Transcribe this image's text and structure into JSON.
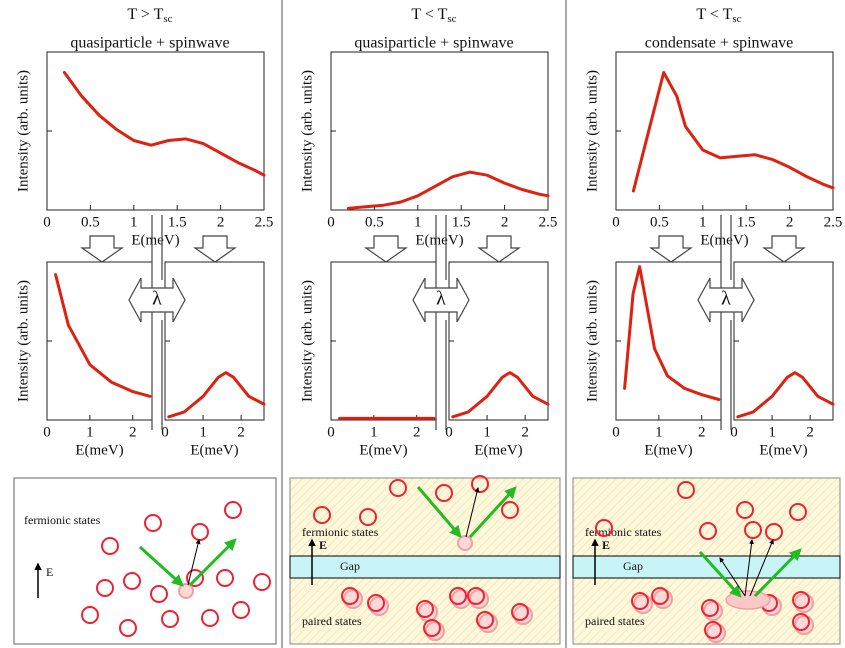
{
  "chart_data": [
    {
      "type": "line",
      "title": "T > T",
      "title_subscript": "sc",
      "subtitle": "quasiparticle + spinwave",
      "xlabel": "E(meV)",
      "ylabel": "Intensity (arb. units)",
      "x": [
        0.2,
        0.4,
        0.6,
        0.8,
        1.0,
        1.2,
        1.4,
        1.6,
        1.8,
        2.0,
        2.2,
        2.4,
        2.5
      ],
      "series": [
        {
          "color": "#dd2211",
          "values": [
            0.87,
            0.72,
            0.6,
            0.51,
            0.44,
            0.41,
            0.44,
            0.45,
            0.42,
            0.36,
            0.3,
            0.25,
            0.22
          ]
        }
      ],
      "xlim": [
        0,
        2.5
      ],
      "xticks": [
        0,
        0.5,
        1,
        1.5,
        2,
        2.5
      ],
      "ylim": [
        0,
        1
      ]
    },
    {
      "type": "line",
      "xlabel": "E(meV)",
      "ylabel": "Intensity (arb. units)",
      "x": [
        0.2,
        0.5,
        1.0,
        1.5,
        2.0,
        2.4
      ],
      "series": [
        {
          "color": "#dd2211",
          "values": [
            0.92,
            0.6,
            0.35,
            0.24,
            0.18,
            0.15
          ]
        }
      ],
      "xlim": [
        0,
        2.45
      ],
      "xticks": [
        0,
        1,
        2
      ],
      "ylim": [
        0,
        1
      ]
    },
    {
      "type": "line",
      "xlabel": "E(meV)",
      "x": [
        0.1,
        0.5,
        1.0,
        1.4,
        1.6,
        1.8,
        2.2,
        2.6
      ],
      "series": [
        {
          "color": "#dd2211",
          "values": [
            0.02,
            0.05,
            0.15,
            0.27,
            0.3,
            0.27,
            0.15,
            0.1
          ]
        }
      ],
      "xlim": [
        0,
        2.6
      ],
      "xticks": [
        0,
        1,
        2
      ],
      "ylim": [
        0,
        1
      ]
    },
    {
      "type": "line",
      "title": "T < T",
      "title_subscript": "sc",
      "subtitle": "quasiparticle + spinwave",
      "xlabel": "E(meV)",
      "ylabel": "Intensity (arb. units)",
      "x": [
        0.2,
        0.4,
        0.6,
        0.8,
        1.0,
        1.2,
        1.4,
        1.6,
        1.8,
        2.0,
        2.2,
        2.4,
        2.5
      ],
      "series": [
        {
          "color": "#dd2211",
          "values": [
            0.01,
            0.02,
            0.03,
            0.05,
            0.09,
            0.15,
            0.21,
            0.24,
            0.22,
            0.17,
            0.13,
            0.1,
            0.09
          ]
        }
      ],
      "xlim": [
        0,
        2.5
      ],
      "xticks": [
        0,
        0.5,
        1,
        1.5,
        2,
        2.5
      ],
      "ylim": [
        0,
        1
      ]
    },
    {
      "type": "line",
      "xlabel": "E(meV)",
      "ylabel": "Intensity (arb. units)",
      "x": [
        0.2,
        1.0,
        2.0,
        2.4
      ],
      "series": [
        {
          "color": "#dd2211",
          "values": [
            0.01,
            0.01,
            0.01,
            0.01
          ]
        }
      ],
      "xlim": [
        0,
        2.45
      ],
      "xticks": [
        0,
        1,
        2
      ],
      "ylim": [
        0,
        1
      ]
    },
    {
      "type": "line",
      "xlabel": "E(meV)",
      "x": [
        0.1,
        0.5,
        1.0,
        1.4,
        1.6,
        1.8,
        2.2,
        2.6
      ],
      "series": [
        {
          "color": "#dd2211",
          "values": [
            0.02,
            0.05,
            0.15,
            0.27,
            0.3,
            0.27,
            0.15,
            0.1
          ]
        }
      ],
      "xlim": [
        0,
        2.6
      ],
      "xticks": [
        0,
        1,
        2
      ],
      "ylim": [
        0,
        1
      ]
    },
    {
      "type": "line",
      "title": "T < T",
      "title_subscript": "sc",
      "subtitle": "condensate + spinwave",
      "xlabel": "E(meV)",
      "ylabel": "Intensity (arb. units)",
      "x": [
        0.2,
        0.4,
        0.55,
        0.7,
        0.8,
        1.0,
        1.2,
        1.4,
        1.6,
        1.8,
        2.0,
        2.2,
        2.4,
        2.5
      ],
      "series": [
        {
          "color": "#dd2211",
          "values": [
            0.12,
            0.55,
            0.87,
            0.72,
            0.53,
            0.38,
            0.33,
            0.34,
            0.35,
            0.32,
            0.27,
            0.21,
            0.16,
            0.14
          ]
        }
      ],
      "xlim": [
        0,
        2.5
      ],
      "xticks": [
        0,
        0.5,
        1,
        1.5,
        2,
        2.5
      ],
      "ylim": [
        0,
        1
      ]
    },
    {
      "type": "line",
      "xlabel": "E(meV)",
      "ylabel": "Intensity (arb. units)",
      "x": [
        0.2,
        0.4,
        0.55,
        0.7,
        0.9,
        1.2,
        1.6,
        2.0,
        2.4
      ],
      "series": [
        {
          "color": "#dd2211",
          "values": [
            0.2,
            0.8,
            0.97,
            0.75,
            0.45,
            0.28,
            0.2,
            0.16,
            0.13
          ]
        }
      ],
      "xlim": [
        0,
        2.45
      ],
      "xticks": [
        0,
        1,
        2
      ],
      "ylim": [
        0,
        1
      ]
    },
    {
      "type": "line",
      "xlabel": "E(meV)",
      "x": [
        0.1,
        0.5,
        1.0,
        1.4,
        1.6,
        1.8,
        2.2,
        2.6
      ],
      "series": [
        {
          "color": "#dd2211",
          "values": [
            0.02,
            0.05,
            0.15,
            0.27,
            0.3,
            0.27,
            0.15,
            0.1
          ]
        }
      ],
      "xlim": [
        0,
        2.6
      ],
      "xticks": [
        0,
        1,
        2
      ],
      "ylim": [
        0,
        1
      ]
    }
  ],
  "lambda_symbols": [
    "λ",
    "λ",
    "λ"
  ],
  "diagrams": [
    {
      "fermionic": "fermionic states",
      "energy": "E"
    },
    {
      "fermionic": "fermionic states",
      "energy": "E",
      "gap": "Gap",
      "paired": "paired states"
    },
    {
      "fermionic": "fermionic states",
      "energy": "E",
      "gap": "Gap",
      "paired": "paired states"
    }
  ]
}
